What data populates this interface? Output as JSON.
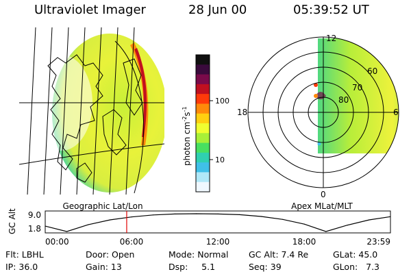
{
  "header": {
    "title": "Ultraviolet Imager",
    "date": "28 Jun 00",
    "time": "05:39:52 UT"
  },
  "left_panel": {
    "caption": "Geographic Lat/Lon"
  },
  "right_panel": {
    "caption": "Apex MLat/MLT",
    "mlt_labels": [
      "12",
      "18",
      "6",
      "0"
    ],
    "lat_labels": [
      "60",
      "70",
      "80"
    ]
  },
  "colorbar": {
    "label": "photon cm",
    "label_exp1": "-2",
    "label_s": "s",
    "label_exp2": "-1",
    "ticks": [
      "100",
      "10"
    ],
    "colors": [
      "#101010",
      "#3a0a3c",
      "#7a0a4a",
      "#c01020",
      "#ff3a0a",
      "#ff8a0a",
      "#ffd010",
      "#f0ff30",
      "#a8f038",
      "#48e060",
      "#30d0b0",
      "#40c0e8",
      "#b0e8f8",
      "#f0f8ff"
    ]
  },
  "altitude_plot": {
    "ylabel": "GC Alt",
    "yticks": [
      "9.0",
      "1.8"
    ],
    "xticks": [
      "00:00",
      "06:00",
      "12:00",
      "18:00",
      "23:59"
    ],
    "current_marker_hour": 5.66
  },
  "info": {
    "row1": {
      "filter": "Flt: LBHL",
      "door": "Door: Open",
      "mode": "Mode: Normal",
      "gc_alt": "GC Alt: 7.4 Re",
      "glat": "GLat:  45.0"
    },
    "row2": {
      "ip": "IP: 36.0",
      "gain": "Gain: 13",
      "dsp": "Dsp:     5.1",
      "seq": "Seq: 39",
      "glon": "GLon:   7.3"
    }
  },
  "chart_data": {
    "type": "line",
    "title": "GC Alt",
    "xlabel": "",
    "ylabel": "GC Alt",
    "x": [
      0,
      1.5,
      3,
      4.5,
      6,
      7.5,
      9,
      10.5,
      12,
      13.5,
      15,
      16.5,
      18,
      19.5,
      21,
      22.5,
      23.98
    ],
    "series": [
      {
        "values": [
          4.0,
          1.8,
          4.6,
          6.5,
          7.7,
          8.5,
          8.9,
          9.0,
          8.9,
          8.6,
          7.9,
          6.7,
          4.8,
          1.8,
          4.4,
          6.5,
          7.8
        ]
      }
    ],
    "xlim": [
      0,
      23.98
    ],
    "ylim": [
      1.8,
      9.0
    ]
  }
}
